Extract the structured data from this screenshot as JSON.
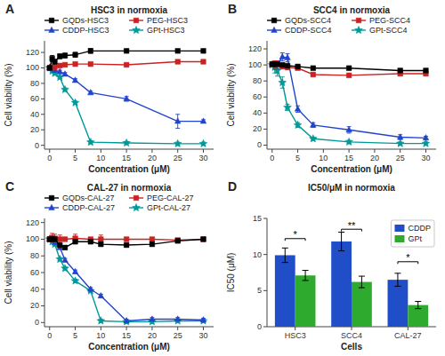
{
  "chart_data": [
    {
      "type": "line",
      "panel_label": "A",
      "title": "HSC3 in normoxia",
      "x_label": "Concentration (μM)",
      "y_label": "Cell viability (%)",
      "x": [
        0,
        0.5,
        1,
        2,
        3,
        5,
        8,
        15,
        25,
        30
      ],
      "xlim": [
        -1,
        32
      ],
      "xticks": [
        0,
        5,
        10,
        15,
        20,
        25,
        30
      ],
      "ylim": [
        -5,
        135
      ],
      "yticks": [
        0,
        20,
        40,
        60,
        80,
        100,
        120
      ],
      "legend": "top",
      "series": [
        {
          "name": "GQDs-HSC3",
          "color": "#000000",
          "marker": "square",
          "values": [
            100,
            112,
            108,
            115,
            116,
            117,
            122,
            122,
            122,
            122
          ],
          "errors": [
            2,
            4,
            3,
            3,
            3,
            3,
            3,
            2,
            2,
            2
          ]
        },
        {
          "name": "PEG-HSC3",
          "color": "#cc2222",
          "marker": "square",
          "values": [
            100,
            101,
            101,
            103,
            104,
            105,
            105,
            104,
            108,
            108
          ],
          "errors": [
            2,
            2,
            2,
            2,
            2,
            2,
            2,
            2,
            2,
            2
          ]
        },
        {
          "name": "CDDP-HSC3",
          "color": "#2244cc",
          "marker": "triangle",
          "values": [
            100,
            99,
            97,
            95,
            92,
            84,
            68,
            60,
            31,
            31
          ],
          "errors": [
            2,
            2,
            2,
            2,
            2,
            2,
            2,
            3,
            9,
            2
          ]
        },
        {
          "name": "GPt-HSC3",
          "color": "#009999",
          "marker": "star",
          "values": [
            100,
            96,
            93,
            88,
            72,
            55,
            4,
            3,
            2,
            2
          ],
          "errors": [
            2,
            2,
            2,
            2,
            2,
            2,
            2,
            2,
            2,
            2
          ]
        }
      ]
    },
    {
      "type": "line",
      "panel_label": "B",
      "title": "SCC4 in normoxia",
      "x_label": "Concentration (μM)",
      "y_label": "Cell viability (%)",
      "x": [
        0,
        0.5,
        1,
        2,
        3,
        5,
        8,
        15,
        25,
        30
      ],
      "xlim": [
        -1,
        32
      ],
      "xticks": [
        0,
        5,
        10,
        15,
        20,
        25,
        30
      ],
      "ylim": [
        -5,
        130
      ],
      "yticks": [
        0,
        20,
        40,
        60,
        80,
        100,
        120
      ],
      "legend": "top",
      "series": [
        {
          "name": "GQDs-SCC4",
          "color": "#000000",
          "marker": "square",
          "values": [
            101,
            101,
            101,
            100,
            99,
            98,
            96,
            96,
            93,
            93
          ],
          "errors": [
            2,
            3,
            2,
            2,
            2,
            2,
            2,
            2,
            2,
            2
          ]
        },
        {
          "name": "PEG-SCC4",
          "color": "#cc2222",
          "marker": "square",
          "values": [
            101,
            100,
            100,
            98,
            97,
            96,
            88,
            87,
            89,
            89
          ],
          "errors": [
            2,
            5,
            5,
            3,
            3,
            2,
            2,
            2,
            2,
            2
          ]
        },
        {
          "name": "CDDP-SCC4",
          "color": "#2244cc",
          "marker": "triangle",
          "values": [
            100,
            100,
            100,
            110,
            109,
            45,
            25,
            19,
            10,
            9
          ],
          "errors": [
            2,
            2,
            5,
            5,
            5,
            4,
            3,
            4,
            3,
            2
          ]
        },
        {
          "name": "GPt-SCC4",
          "color": "#009999",
          "marker": "star",
          "values": [
            100,
            97,
            93,
            78,
            47,
            25,
            8,
            4,
            2,
            2
          ],
          "errors": [
            2,
            7,
            7,
            7,
            4,
            3,
            2,
            2,
            2,
            2
          ]
        }
      ]
    },
    {
      "type": "line",
      "panel_label": "C",
      "title": "CAL-27 in normoxia",
      "x_label": "Concentration (μM)",
      "y_label": "Cell viability (%)",
      "x": [
        0,
        0.5,
        1,
        2,
        3,
        5,
        8,
        10,
        15,
        20,
        25,
        30
      ],
      "xlim": [
        -1,
        32
      ],
      "xticks": [
        0,
        5,
        10,
        15,
        20,
        25,
        30
      ],
      "ylim": [
        -5,
        125
      ],
      "yticks": [
        0,
        20,
        40,
        60,
        80,
        100,
        120
      ],
      "legend": "top",
      "series": [
        {
          "name": "GQDs-CAL-27",
          "color": "#000000",
          "marker": "square",
          "values": [
            100,
            100,
            100,
            93,
            90,
            97,
            97,
            94,
            93,
            94,
            98,
            100
          ],
          "errors": [
            2,
            2,
            2,
            2,
            2,
            2,
            2,
            2,
            2,
            2,
            2,
            2
          ]
        },
        {
          "name": "PEG-CAL-27",
          "color": "#cc2222",
          "marker": "square",
          "values": [
            100,
            102,
            101,
            100,
            100,
            101,
            100,
            100,
            100,
            100,
            99,
            100
          ],
          "errors": [
            2,
            5,
            5,
            5,
            2,
            5,
            2,
            5,
            2,
            2,
            2,
            2
          ]
        },
        {
          "name": "CDDP-CAL-27",
          "color": "#2244cc",
          "marker": "triangle",
          "values": [
            100,
            100,
            96,
            90,
            75,
            61,
            40,
            32,
            2,
            4,
            4,
            3
          ],
          "errors": [
            2,
            2,
            2,
            2,
            2,
            2,
            2,
            2,
            2,
            2,
            2,
            2
          ]
        },
        {
          "name": "GPt-CAL-27",
          "color": "#009999",
          "marker": "star",
          "values": [
            100,
            97,
            94,
            76,
            65,
            50,
            38,
            2,
            1,
            1,
            2,
            2
          ],
          "errors": [
            2,
            2,
            2,
            2,
            2,
            2,
            2,
            2,
            2,
            2,
            2,
            2
          ]
        }
      ]
    },
    {
      "type": "bar",
      "panel_label": "D",
      "title": "IC50/μM in normoxia",
      "x_label": "Cells",
      "y_label": "IC50 (μM)",
      "categories": [
        "HSC3",
        "SCC4",
        "CAL-27"
      ],
      "ylim": [
        0,
        15
      ],
      "yticks": [
        0,
        5,
        10,
        15
      ],
      "legend": "upper right",
      "series": [
        {
          "name": "CDDP",
          "color": "#1f4ec8",
          "values": [
            9.9,
            11.8,
            6.5
          ],
          "errors": [
            1.0,
            1.3,
            0.9
          ]
        },
        {
          "name": "GPt",
          "color": "#2eaa2e",
          "values": [
            7.1,
            6.2,
            3.0
          ],
          "errors": [
            0.7,
            0.8,
            0.5
          ]
        }
      ],
      "annotations": [
        {
          "text": "*",
          "category": "HSC3",
          "y": 12.2
        },
        {
          "text": "**",
          "category": "SCC4",
          "y": 13.5
        },
        {
          "text": "*",
          "category": "CAL-27",
          "y": 9.0
        }
      ]
    }
  ]
}
